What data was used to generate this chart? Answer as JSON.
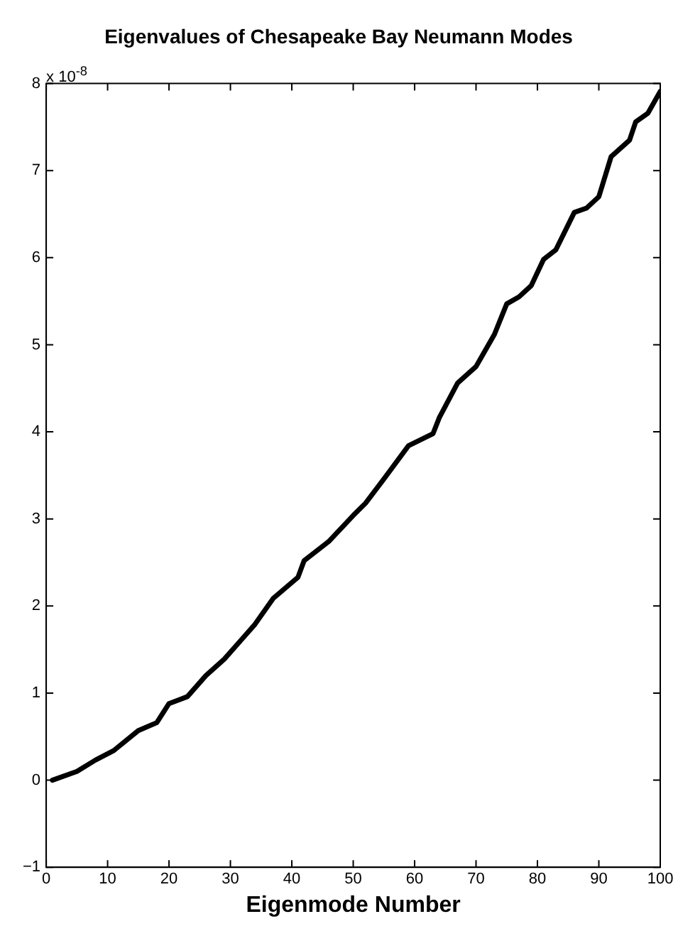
{
  "chart_data": {
    "type": "line",
    "title": "Eigenvalues of Chesapeake Bay Neumann Modes",
    "xlabel": "Eigenmode Number",
    "annotations": [
      "x 10$^{-8}$"
    ],
    "xlim": [
      0,
      100
    ],
    "xticks": [
      0,
      10,
      20,
      30,
      40,
      50,
      60,
      70,
      80,
      90,
      100
    ],
    "ylim": [
      -1,
      8
    ],
    "yticks": [
      -1,
      0,
      1,
      2,
      3,
      4,
      5,
      6,
      7,
      8
    ],
    "grid": false,
    "legend": false,
    "marker": "none",
    "line_style": "solid",
    "series": [
      {
        "color": "#000000",
        "x": [
          1,
          5,
          8,
          11,
          15,
          18,
          20,
          23,
          26,
          29,
          32,
          34,
          37,
          41,
          42,
          46,
          50,
          52,
          55,
          59,
          63,
          64,
          67,
          70,
          73,
          75,
          77,
          79,
          81,
          83,
          86,
          88,
          90,
          92,
          95,
          96,
          98,
          100
        ],
        "values": [
          0,
          0.1,
          0.23,
          0.34,
          0.57,
          0.66,
          0.88,
          0.96,
          1.2,
          1.39,
          1.63,
          1.79,
          2.09,
          2.33,
          2.52,
          2.74,
          3.04,
          3.18,
          3.46,
          3.84,
          3.98,
          4.16,
          4.56,
          4.75,
          5.12,
          5.47,
          5.55,
          5.68,
          5.98,
          6.09,
          6.52,
          6.57,
          6.7,
          7.16,
          7.35,
          7.56,
          7.66,
          7.91
        ]
      }
    ]
  }
}
